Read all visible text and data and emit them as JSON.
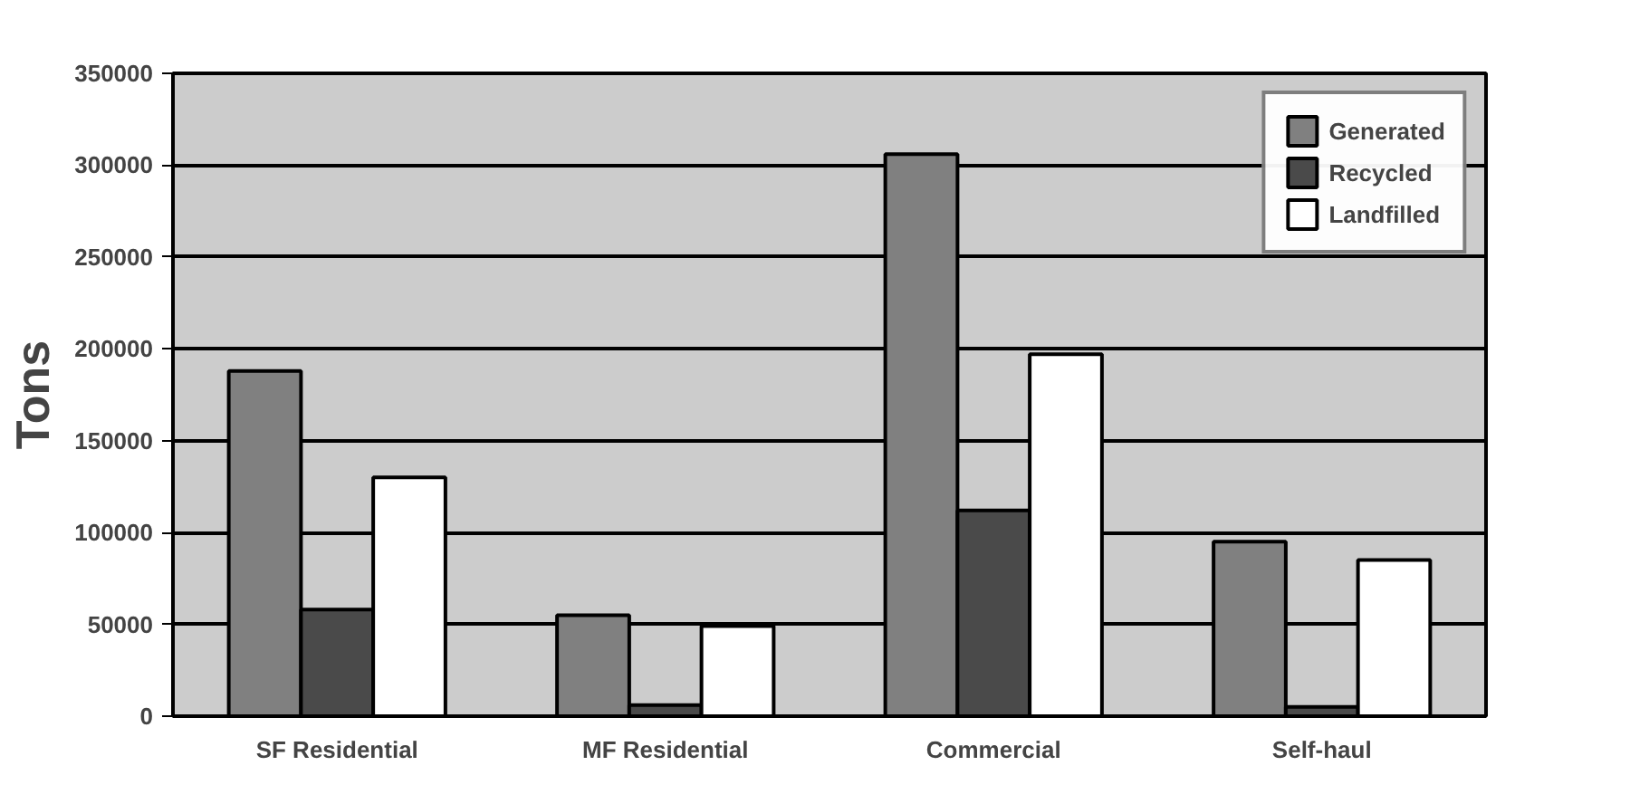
{
  "chart_data": {
    "type": "bar",
    "ylabel": "Tons",
    "categories": [
      "SF Residential",
      "MF Residential",
      "Commercial",
      "Self-haul"
    ],
    "series": [
      {
        "name": "Generated",
        "color": "#808080",
        "values": [
          188000,
          55000,
          306000,
          95000
        ]
      },
      {
        "name": "Recycled",
        "color": "#4a4a4a",
        "values": [
          58000,
          6000,
          112000,
          5000
        ]
      },
      {
        "name": "Landfilled",
        "color": "#ffffff",
        "values": [
          130000,
          49000,
          197000,
          85000
        ]
      }
    ],
    "ylim": [
      0,
      350000
    ],
    "yticks": [
      0,
      50000,
      100000,
      150000,
      200000,
      250000,
      300000,
      350000
    ],
    "grid": "y",
    "legend": "top right"
  }
}
